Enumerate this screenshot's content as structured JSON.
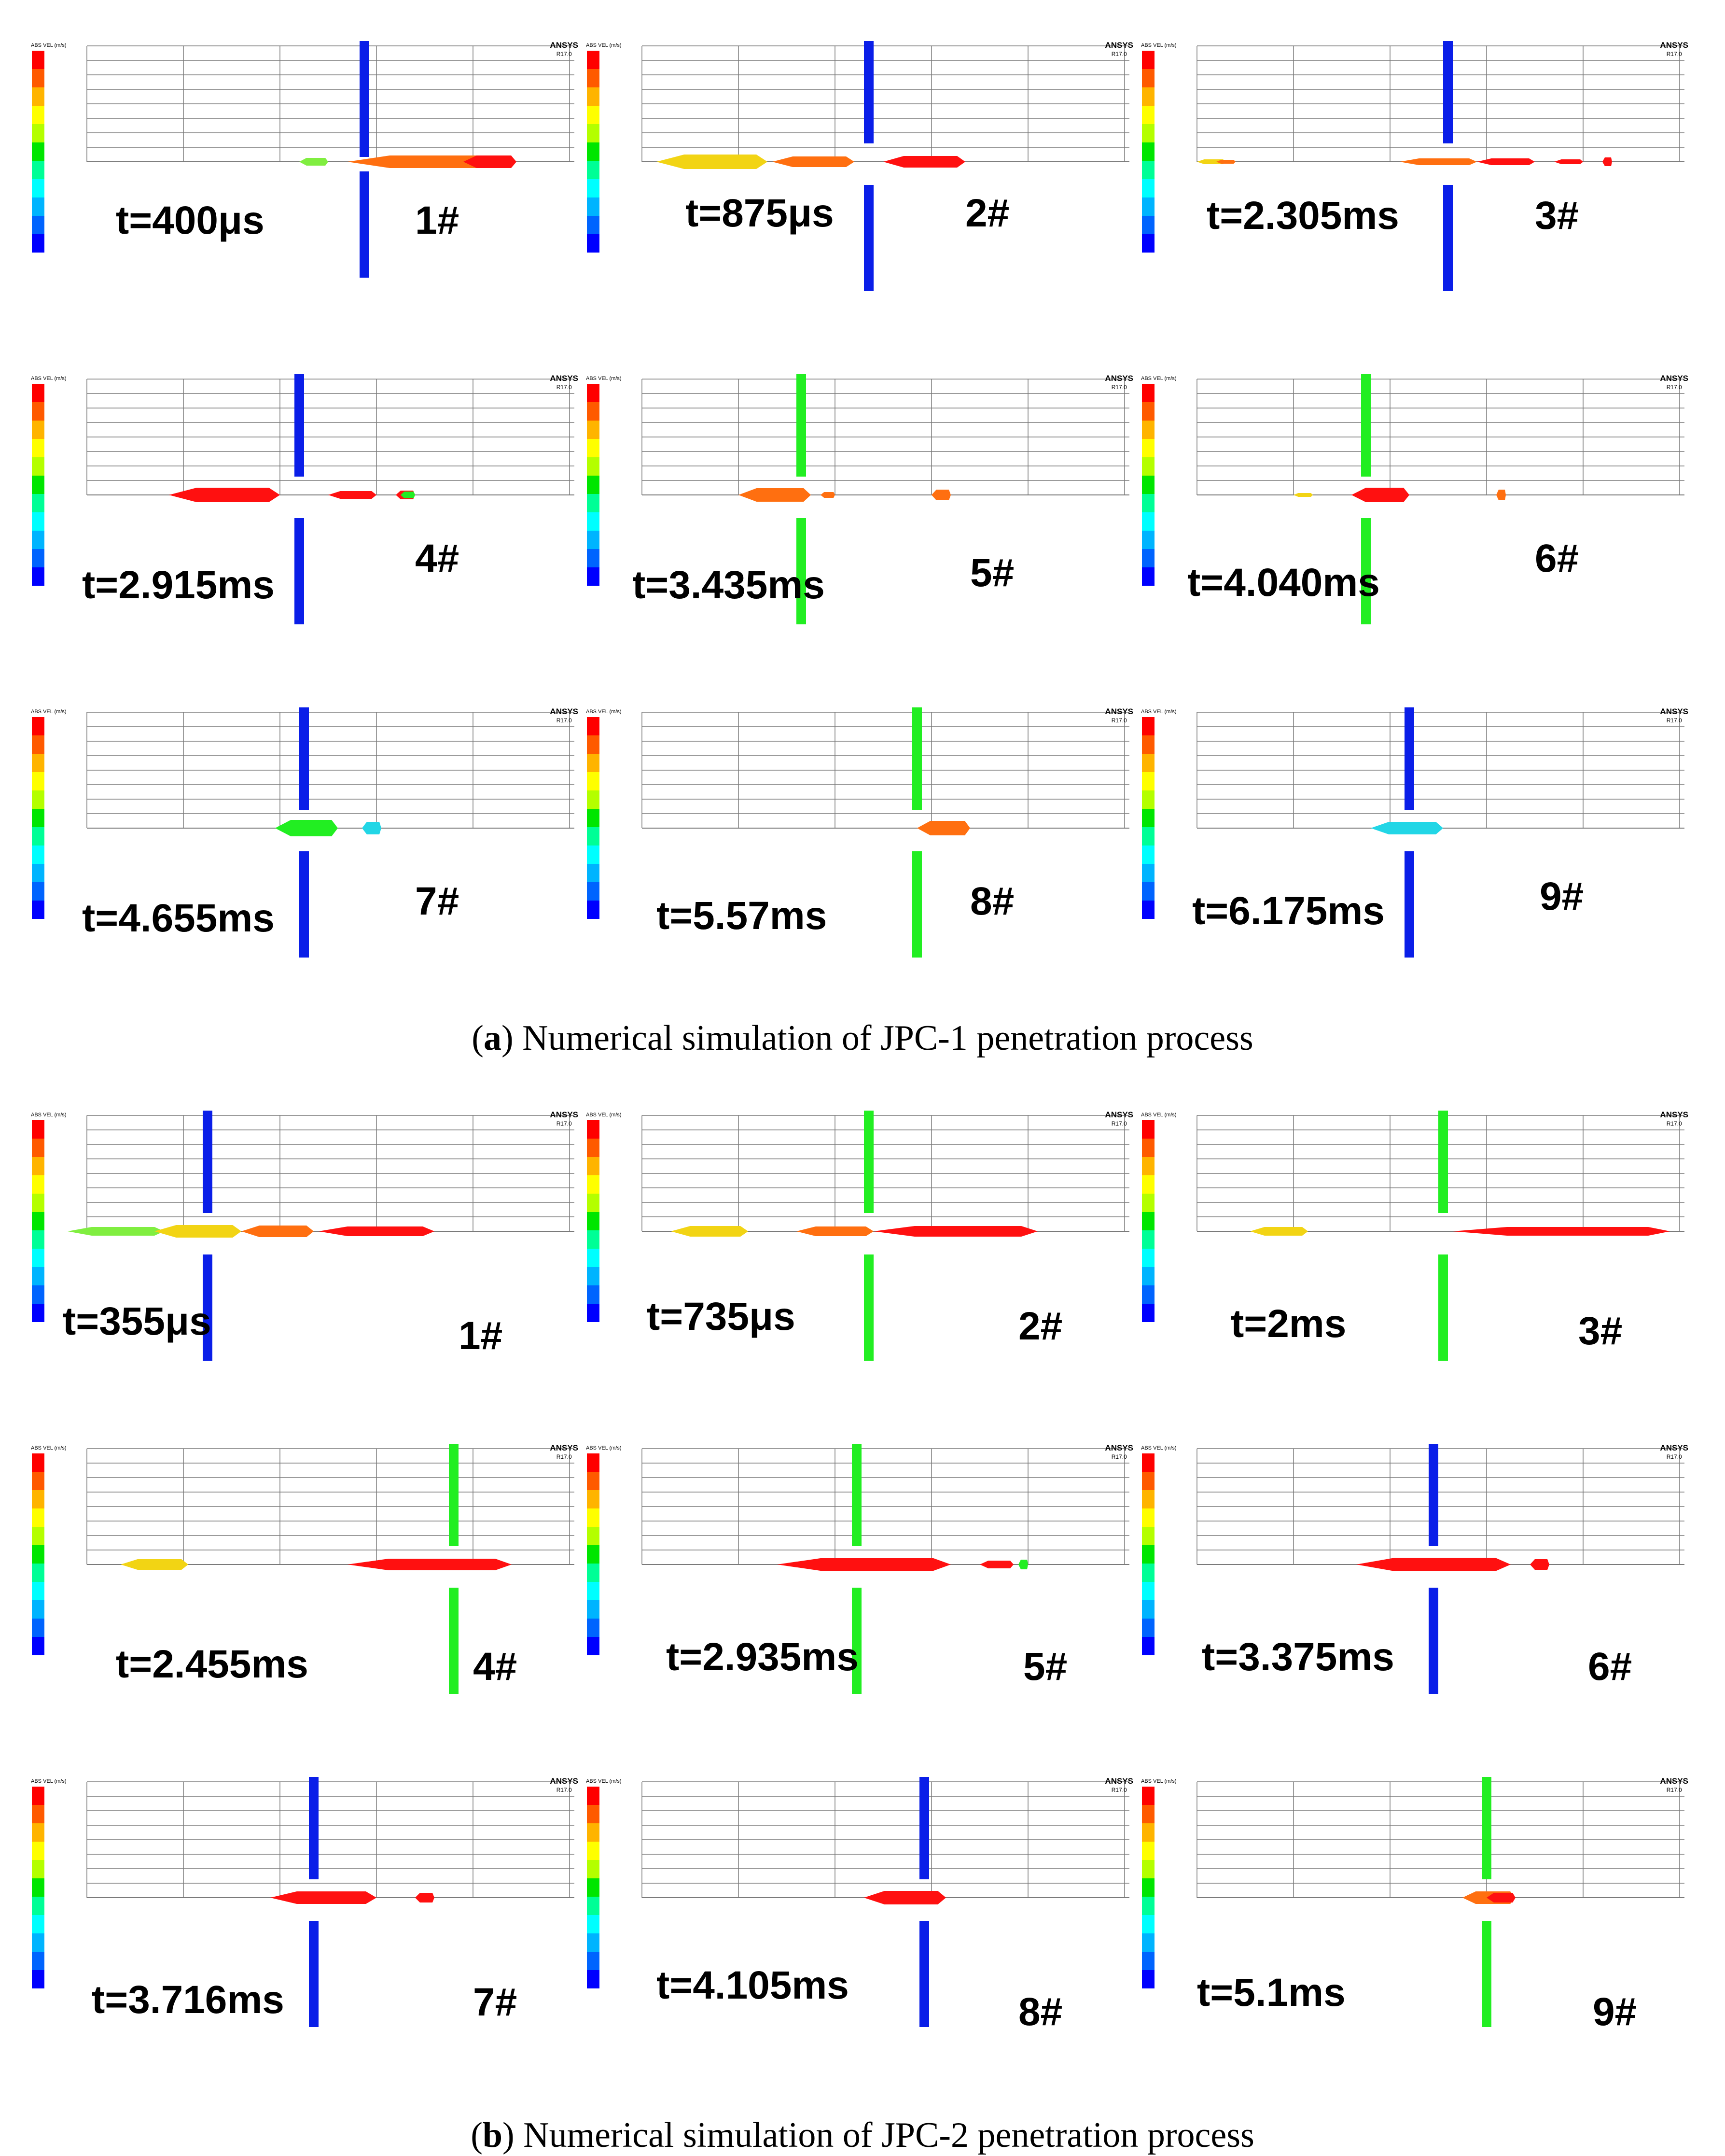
{
  "software": "ANSYS",
  "software_version": "R17.0",
  "legend_title": "ABS VEL (m/s)",
  "colors": {
    "blue": "#0a1ee8",
    "green": "#22ee22",
    "red": "#ff1010",
    "orange": "#ff6f10",
    "yellow": "#f2d414",
    "lightgreen": "#80ee40",
    "cyan": "#22d6e6",
    "grid": "#7a7a7a"
  },
  "legend_colors": [
    "#ff0000",
    "#ff5a00",
    "#ffb400",
    "#ffff00",
    "#b4ff00",
    "#00e600",
    "#00ff96",
    "#00ffff",
    "#00b4ff",
    "#0064ff",
    "#0000ff"
  ],
  "figure_a": {
    "caption_label": "a",
    "caption_text": "Numerical simulation of JPC-1 penetration process",
    "panels": [
      {
        "label": "1#",
        "time": "t=400μs"
      },
      {
        "label": "2#",
        "time": "t=875μs"
      },
      {
        "label": "3#",
        "time": "t=2.305ms"
      },
      {
        "label": "4#",
        "time": "t=2.915ms"
      },
      {
        "label": "5#",
        "time": "t=3.435ms"
      },
      {
        "label": "6#",
        "time": "t=4.040ms"
      },
      {
        "label": "7#",
        "time": "t=4.655ms"
      },
      {
        "label": "8#",
        "time": "t=5.57ms"
      },
      {
        "label": "9#",
        "time": "t=6.175ms"
      }
    ]
  },
  "figure_b": {
    "caption_label": "b",
    "caption_text": "Numerical simulation of JPC-2 penetration process",
    "panels": [
      {
        "label": "1#",
        "time": "t=355μs"
      },
      {
        "label": "2#",
        "time": "t=735μs"
      },
      {
        "label": "3#",
        "time": "t=2ms"
      },
      {
        "label": "4#",
        "time": "t=2.455ms"
      },
      {
        "label": "5#",
        "time": "t=2.935ms"
      },
      {
        "label": "6#",
        "time": "t=3.375ms"
      },
      {
        "label": "7#",
        "time": "t=3.716ms"
      },
      {
        "label": "8#",
        "time": "t=4.105ms"
      },
      {
        "label": "9#",
        "time": "t=5.1ms"
      }
    ]
  }
}
